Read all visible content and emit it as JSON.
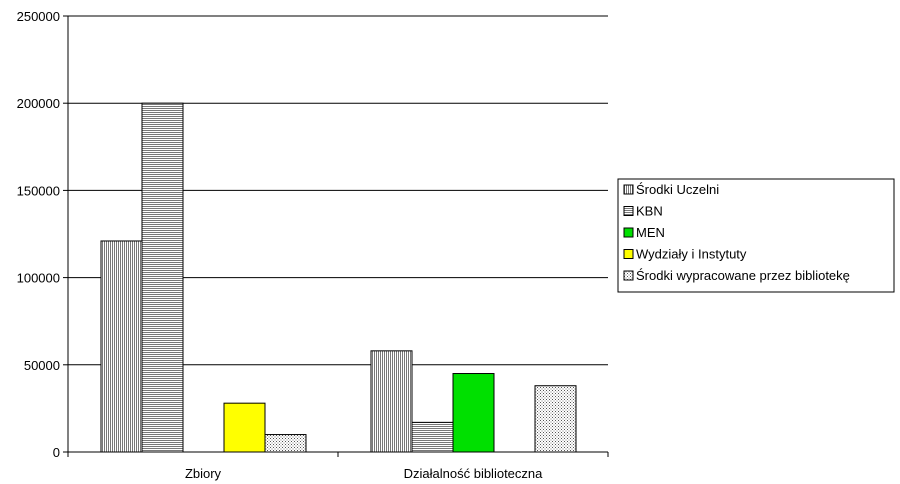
{
  "chart_data": {
    "type": "bar",
    "categories": [
      "Zbiory",
      "Działalność biblioteczna"
    ],
    "series": [
      {
        "name": "Środki Uczelni",
        "values": [
          121000,
          58000
        ],
        "pattern": "vertical-lines",
        "color": "#ffffff"
      },
      {
        "name": "KBN",
        "values": [
          200000,
          17000
        ],
        "pattern": "horizontal-lines",
        "color": "#ffffff"
      },
      {
        "name": "MEN",
        "values": [
          0,
          45000
        ],
        "pattern": "solid",
        "color": "#00e000"
      },
      {
        "name": "Wydziały i Instytuty",
        "values": [
          28000,
          0
        ],
        "pattern": "solid",
        "color": "#ffff00"
      },
      {
        "name": "Środki wypracowane przez bibliotekę",
        "values": [
          10000,
          38000
        ],
        "pattern": "dots",
        "color": "#ffffff"
      }
    ],
    "ylim": [
      0,
      250000
    ],
    "yticks": [
      "0",
      "50000",
      "100000",
      "150000",
      "200000",
      "250000"
    ],
    "grid": true,
    "legend_position": "right"
  }
}
